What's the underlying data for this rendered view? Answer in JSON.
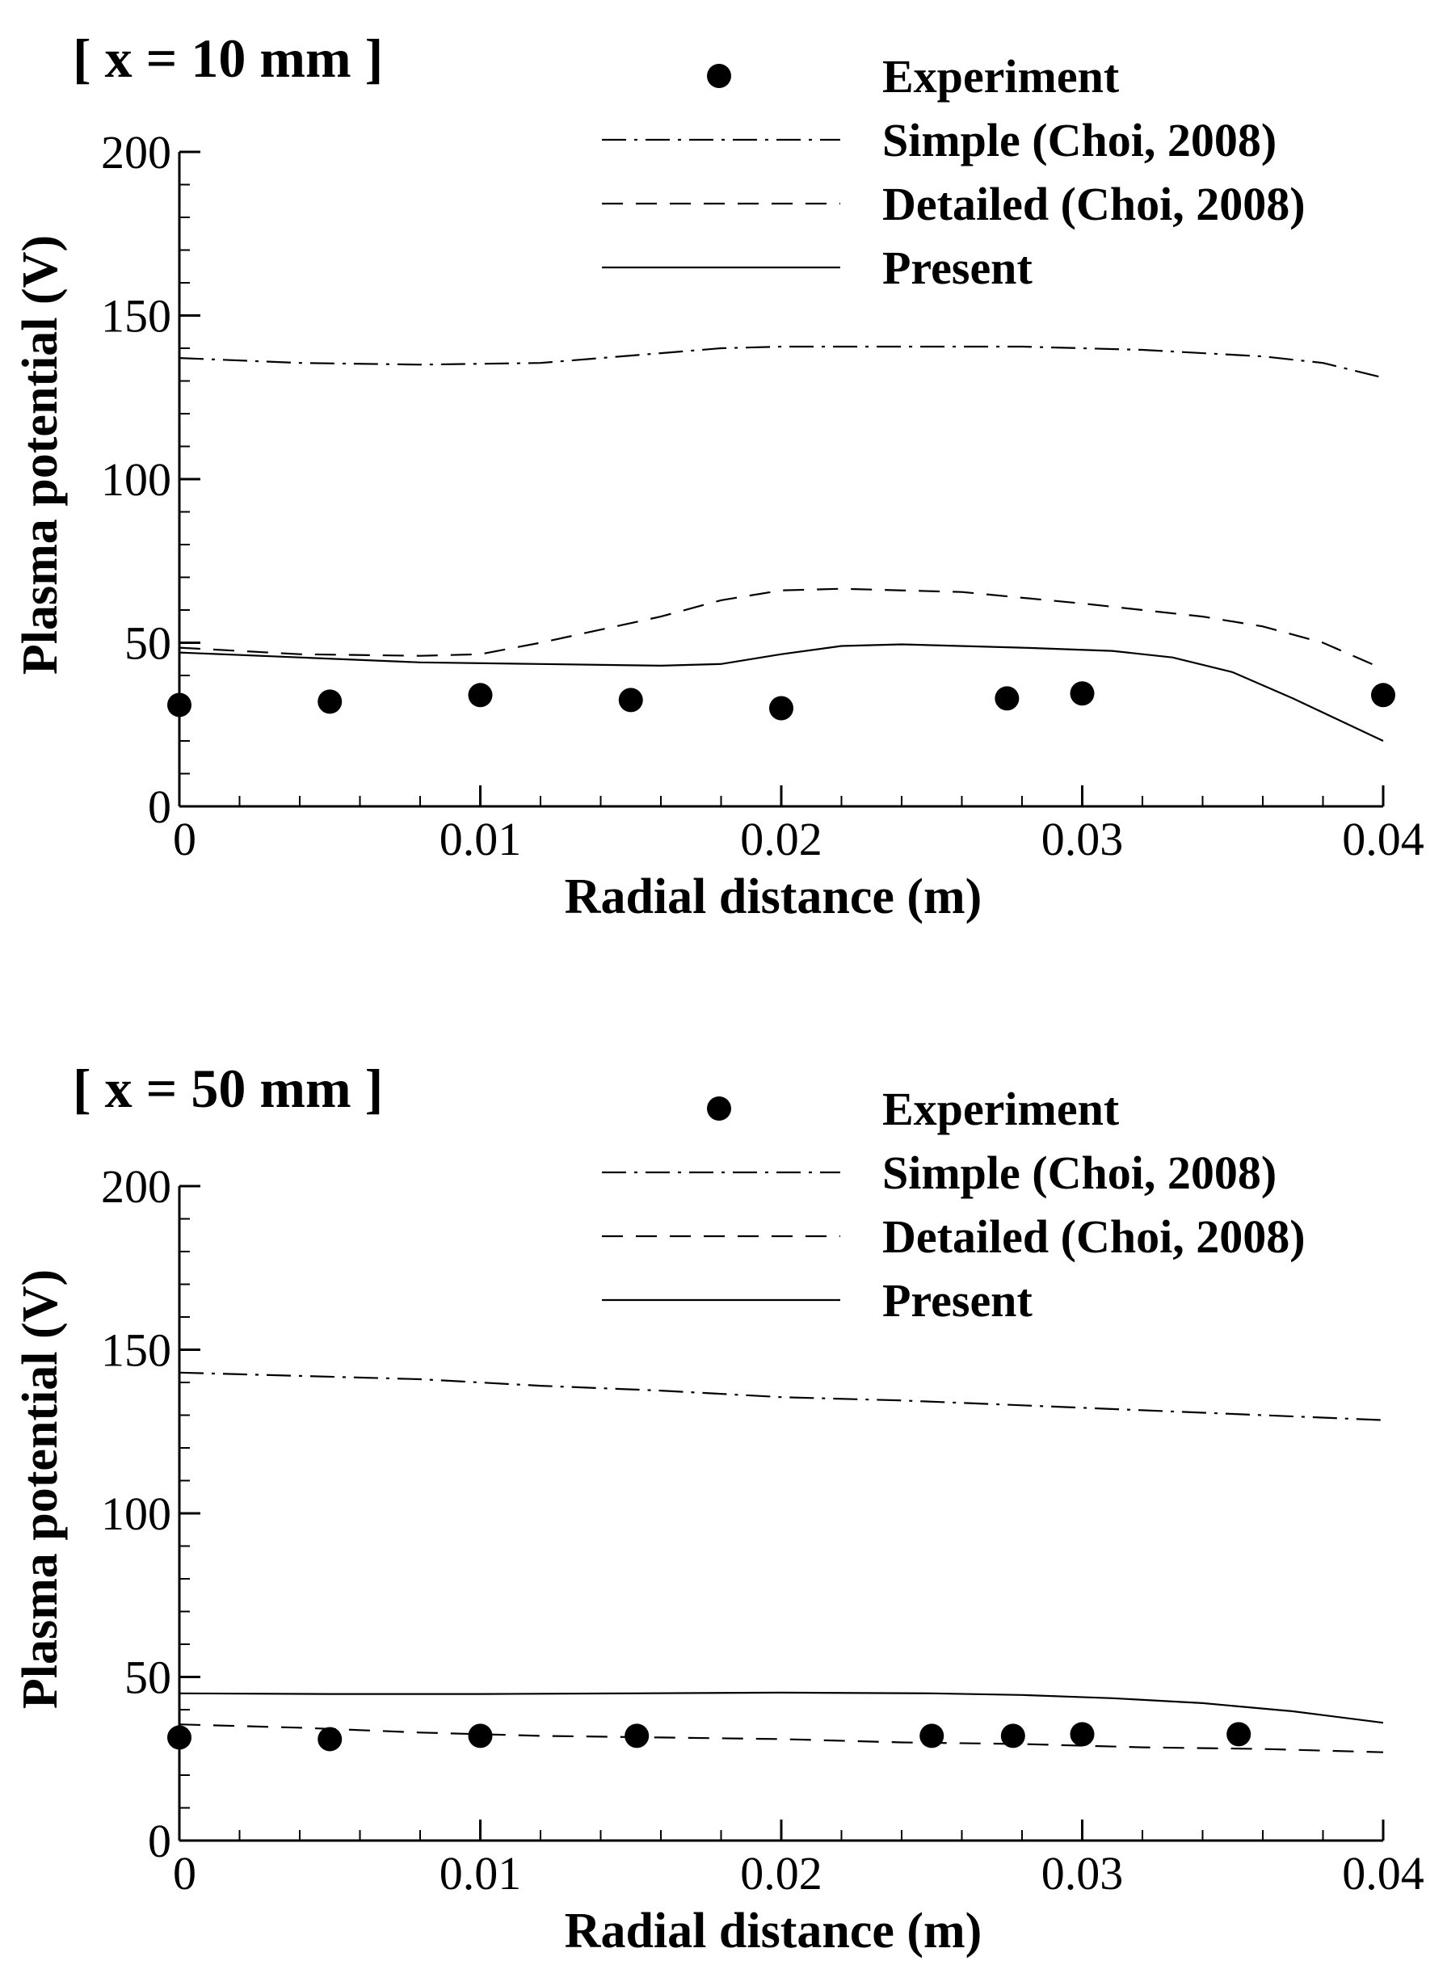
{
  "chart_data": [
    {
      "type": "line",
      "title": "[ x = 10 mm ]",
      "xlabel": "Radial distance (m)",
      "ylabel": "Plasma potential (V)",
      "xlim": [
        0,
        0.04
      ],
      "ylim": [
        0,
        200
      ],
      "x_ticks": [
        0,
        0.01,
        0.02,
        0.03,
        0.04
      ],
      "x_tick_labels": [
        "0",
        "0.01",
        "0.02",
        "0.03",
        "0.04"
      ],
      "y_ticks": [
        0,
        50,
        100,
        150,
        200
      ],
      "y_tick_labels": [
        "0",
        "50",
        "100",
        "150",
        "200"
      ],
      "grid": false,
      "legend_position": "top-right",
      "series": [
        {
          "name": "Experiment",
          "style": "marker",
          "x": [
            0,
            0.005,
            0.01,
            0.015,
            0.02,
            0.0275,
            0.03,
            0.04
          ],
          "y": [
            31,
            32,
            34,
            32.5,
            30,
            33,
            34.5,
            34
          ]
        },
        {
          "name": "Simple (Choi, 2008)",
          "style": "dashdot",
          "x": [
            0,
            0.004,
            0.008,
            0.012,
            0.016,
            0.018,
            0.02,
            0.024,
            0.028,
            0.032,
            0.036,
            0.038,
            0.04
          ],
          "y": [
            137,
            135.5,
            135,
            135.5,
            138.5,
            140,
            140.5,
            140.5,
            140.5,
            139.5,
            137.5,
            135.5,
            131
          ]
        },
        {
          "name": "Detailed (Choi, 2008)",
          "style": "dashed",
          "x": [
            0,
            0.004,
            0.008,
            0.01,
            0.012,
            0.016,
            0.018,
            0.02,
            0.022,
            0.026,
            0.03,
            0.034,
            0.036,
            0.038,
            0.04
          ],
          "y": [
            48.5,
            46.5,
            46,
            46.5,
            50,
            58,
            63,
            66,
            66.5,
            65.5,
            62,
            58,
            55,
            50,
            42
          ]
        },
        {
          "name": "Present",
          "style": "solid",
          "x": [
            0,
            0.004,
            0.008,
            0.012,
            0.016,
            0.018,
            0.02,
            0.022,
            0.024,
            0.028,
            0.031,
            0.033,
            0.035,
            0.037,
            0.04
          ],
          "y": [
            47,
            45.5,
            44,
            43.5,
            43,
            43.5,
            46.5,
            49,
            49.5,
            48.5,
            47.5,
            45.5,
            41,
            33,
            20
          ]
        }
      ]
    },
    {
      "type": "line",
      "title": "[ x = 50 mm ]",
      "xlabel": "Radial distance (m)",
      "ylabel": "Plasma potential (V)",
      "xlim": [
        0,
        0.04
      ],
      "ylim": [
        0,
        200
      ],
      "x_ticks": [
        0,
        0.01,
        0.02,
        0.03,
        0.04
      ],
      "x_tick_labels": [
        "0",
        "0.01",
        "0.02",
        "0.03",
        "0.04"
      ],
      "y_ticks": [
        0,
        50,
        100,
        150,
        200
      ],
      "y_tick_labels": [
        "0",
        "50",
        "100",
        "150",
        "200"
      ],
      "grid": false,
      "legend_position": "top-right",
      "series": [
        {
          "name": "Experiment",
          "style": "marker",
          "x": [
            0,
            0.005,
            0.01,
            0.0152,
            0.025,
            0.0277,
            0.03,
            0.0352
          ],
          "y": [
            31.5,
            31,
            32,
            32,
            32,
            32,
            32.5,
            32.5
          ]
        },
        {
          "name": "Simple (Choi, 2008)",
          "style": "dashdot",
          "x": [
            0,
            0.004,
            0.008,
            0.012,
            0.016,
            0.02,
            0.024,
            0.028,
            0.032,
            0.036,
            0.04
          ],
          "y": [
            143,
            142,
            141,
            139,
            137.5,
            135.5,
            134.5,
            133,
            131.5,
            130,
            128.5
          ]
        },
        {
          "name": "Detailed (Choi, 2008)",
          "style": "dashed",
          "x": [
            0,
            0.004,
            0.008,
            0.012,
            0.016,
            0.02,
            0.024,
            0.028,
            0.032,
            0.036,
            0.04
          ],
          "y": [
            35.5,
            34.5,
            33,
            32,
            31.5,
            31,
            30,
            29.5,
            28.5,
            28,
            27
          ]
        },
        {
          "name": "Present",
          "style": "solid",
          "x": [
            0,
            0.005,
            0.01,
            0.015,
            0.02,
            0.025,
            0.028,
            0.031,
            0.034,
            0.037,
            0.04
          ],
          "y": [
            45,
            44.8,
            44.8,
            45,
            45.2,
            45,
            44.5,
            43.5,
            42,
            39.5,
            36
          ]
        }
      ]
    }
  ]
}
